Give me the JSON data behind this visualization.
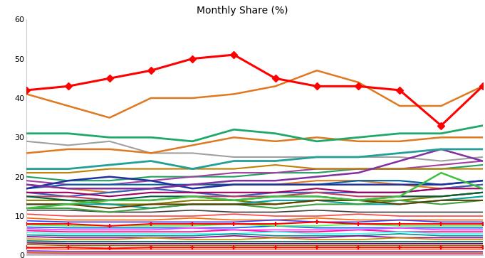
{
  "title": "Monthly Share (%)",
  "title_bg": "#cccccc",
  "xlim": [
    0,
    11
  ],
  "ylim": [
    0,
    60
  ],
  "yticks": [
    0,
    10,
    20,
    30,
    40,
    50,
    60
  ],
  "n_points": 12,
  "red_line_main": [
    42,
    43,
    45,
    47,
    50,
    51,
    45,
    43,
    43,
    42,
    33,
    43
  ],
  "orange_line_high": [
    41,
    38,
    35,
    40,
    40,
    41,
    43,
    47,
    44,
    38,
    38,
    43
  ],
  "teal_line_high": [
    31,
    31,
    30,
    30,
    29,
    32,
    31,
    29,
    30,
    31,
    31,
    33
  ],
  "orange_line_mid": [
    26,
    27,
    27,
    26,
    28,
    30,
    29,
    30,
    29,
    29,
    30,
    30
  ],
  "gray_line": [
    29,
    28,
    29,
    26,
    26,
    25,
    25,
    25,
    25,
    25,
    24,
    25
  ],
  "teal_line_mid": [
    22,
    22,
    23,
    24,
    22,
    24,
    24,
    25,
    25,
    26,
    27,
    27
  ],
  "purple_line": [
    18,
    17,
    17,
    17,
    18,
    19,
    19,
    20,
    21,
    24,
    27,
    24
  ],
  "darkblue_line": [
    17,
    19,
    20,
    19,
    17,
    18,
    18,
    18,
    18,
    18,
    18,
    19
  ],
  "green_line_bright": [
    12,
    13,
    14,
    14,
    15,
    14,
    15,
    15,
    14,
    15,
    21,
    17
  ],
  "lines_mid": [
    {
      "color": "#e07820",
      "values": [
        18,
        17,
        16,
        17,
        18,
        18,
        18,
        19,
        19,
        18,
        17,
        18
      ]
    },
    {
      "color": "#20a060",
      "values": [
        20,
        19,
        19,
        20,
        20,
        20,
        21,
        21,
        22,
        22,
        22,
        23
      ]
    },
    {
      "color": "#3060c0",
      "values": [
        16,
        15,
        16,
        17,
        16,
        15,
        16,
        16,
        16,
        16,
        17,
        18
      ]
    },
    {
      "color": "#c04060",
      "values": [
        15,
        15,
        14,
        14,
        15,
        15,
        15,
        16,
        15,
        15,
        15,
        16
      ]
    },
    {
      "color": "#808000",
      "values": [
        14,
        14,
        13,
        13,
        14,
        14,
        13,
        14,
        14,
        14,
        15,
        16
      ]
    },
    {
      "color": "#00a0a0",
      "values": [
        13,
        13,
        13,
        12,
        13,
        13,
        14,
        14,
        13,
        13,
        14,
        15
      ]
    },
    {
      "color": "#a040a0",
      "values": [
        19,
        18,
        18,
        19,
        20,
        21,
        21,
        22,
        22,
        22,
        23,
        24
      ]
    },
    {
      "color": "#40a040",
      "values": [
        12,
        12,
        11,
        12,
        13,
        13,
        12,
        13,
        13,
        14,
        13,
        14
      ]
    },
    {
      "color": "#c08000",
      "values": [
        21,
        21,
        22,
        22,
        22,
        22,
        23,
        22,
        22,
        22,
        22,
        22
      ]
    },
    {
      "color": "#0060a0",
      "values": [
        17,
        18,
        18,
        18,
        18,
        18,
        18,
        18,
        19,
        19,
        18,
        19
      ]
    },
    {
      "color": "#a00060",
      "values": [
        16,
        16,
        15,
        16,
        16,
        16,
        16,
        17,
        16,
        16,
        17,
        17
      ]
    },
    {
      "color": "#006040",
      "values": [
        15,
        14,
        14,
        15,
        15,
        14,
        15,
        15,
        14,
        15,
        15,
        16
      ]
    },
    {
      "color": "#604000",
      "values": [
        13,
        13,
        12,
        13,
        13,
        13,
        13,
        14,
        14,
        13,
        14,
        14
      ]
    }
  ],
  "lines_low": [
    {
      "color": "#404040",
      "values": [
        11.5,
        11.5,
        11,
        11,
        11.5,
        11,
        11,
        11.5,
        11,
        11,
        11,
        11
      ]
    },
    {
      "color": "#ff4040",
      "values": [
        10.5,
        10,
        10,
        10,
        10,
        10.5,
        10,
        10,
        10.5,
        10,
        10,
        10
      ]
    },
    {
      "color": "#ff6600",
      "values": [
        9.5,
        9,
        9,
        9,
        9.5,
        9,
        9,
        9.5,
        9,
        9,
        9,
        9
      ]
    },
    {
      "color": "#4040ff",
      "values": [
        8.8,
        8.5,
        8.5,
        8.5,
        8.5,
        8.5,
        9,
        8.5,
        8.5,
        9,
        8.5,
        8.5
      ]
    },
    {
      "color": "#0060ff",
      "values": [
        7.2,
        7,
        7,
        7,
        7,
        7,
        7.5,
        7,
        7,
        7,
        7,
        7
      ]
    },
    {
      "color": "#40ff40",
      "values": [
        7.8,
        7.5,
        7.5,
        7.5,
        7.5,
        8,
        7.5,
        7.5,
        8,
        7.5,
        7.5,
        7.5
      ]
    },
    {
      "color": "#ff0090",
      "values": [
        6.3,
        6,
        6,
        6,
        6,
        6.5,
        6,
        6,
        6.5,
        6,
        6,
        6
      ]
    },
    {
      "color": "#ff40ff",
      "values": [
        6.8,
        6.5,
        6.5,
        6.5,
        7,
        6.5,
        6.5,
        6.5,
        6.5,
        7,
        6.5,
        6.5
      ]
    },
    {
      "color": "#40ffff",
      "values": [
        5.8,
        5.5,
        5.5,
        5.5,
        5.5,
        5.5,
        6,
        5.5,
        5.5,
        6,
        5.5,
        5.5
      ]
    },
    {
      "color": "#009090",
      "values": [
        5.2,
        5,
        5,
        5,
        5,
        5.5,
        5,
        5,
        5,
        5.5,
        5,
        5
      ]
    },
    {
      "color": "#900090",
      "values": [
        4.8,
        4.5,
        4.5,
        4.5,
        4.5,
        5,
        4.5,
        4.5,
        5,
        4.5,
        4.5,
        4.5
      ]
    },
    {
      "color": "#c09000",
      "values": [
        4.2,
        4,
        4,
        4.5,
        4,
        4,
        4.5,
        4,
        4,
        4.5,
        4,
        4
      ]
    },
    {
      "color": "#006060",
      "values": [
        3.7,
        3.5,
        3.5,
        3.5,
        3.5,
        3.5,
        3.5,
        3.5,
        3.5,
        3.5,
        3.5,
        3.5
      ]
    },
    {
      "color": "#600060",
      "values": [
        3.2,
        3,
        3,
        3,
        3,
        3,
        3,
        3,
        3,
        3,
        3,
        3
      ]
    },
    {
      "color": "#906000",
      "values": [
        2.8,
        2.5,
        2.5,
        2.5,
        2.5,
        2.5,
        2.5,
        2.5,
        2.5,
        2.5,
        2.5,
        2.5
      ]
    },
    {
      "color": "#ff8040",
      "values": [
        1.8,
        1.5,
        1.5,
        1.5,
        1.5,
        1.5,
        1.5,
        1.5,
        1.5,
        1.5,
        1.5,
        1.5
      ]
    },
    {
      "color": "#8040ff",
      "values": [
        1.2,
        1,
        1,
        1,
        1,
        1,
        1,
        1,
        1,
        1,
        1,
        1
      ]
    },
    {
      "color": "#ff4080",
      "values": [
        0.7,
        0.5,
        0.5,
        0.5,
        0.5,
        0.5,
        0.5,
        0.5,
        0.5,
        0.5,
        0.5,
        0.5
      ]
    }
  ],
  "red_line_low1": [
    8,
    8,
    7.5,
    8,
    8,
    8,
    8,
    8.5,
    8,
    8,
    8,
    8
  ],
  "red_line_low2": [
    2,
    2,
    1.8,
    2,
    2,
    2,
    2,
    2,
    2,
    2,
    2,
    2
  ],
  "flat_lines": [
    {
      "color": "#00ffff",
      "value": 0.3
    },
    {
      "color": "#ffff00",
      "value": 0.05
    },
    {
      "color": "#ff00ff",
      "value": 0.15
    },
    {
      "color": "#00ff00",
      "value": 0.2
    },
    {
      "color": "#0000ff",
      "value": 0.4
    },
    {
      "color": "#804000",
      "value": 0.5
    },
    {
      "color": "#008000",
      "value": 0.6
    },
    {
      "color": "#800080",
      "value": 0.7
    },
    {
      "color": "#008080",
      "value": 0.8
    },
    {
      "color": "#c0c000",
      "value": 0.9
    },
    {
      "color": "#ff0000",
      "value": 0.1
    },
    {
      "color": "#00c0c0",
      "value": 0.35
    },
    {
      "color": "#c000c0",
      "value": 0.25
    },
    {
      "color": "#c0c0c0",
      "value": 0.45
    }
  ]
}
